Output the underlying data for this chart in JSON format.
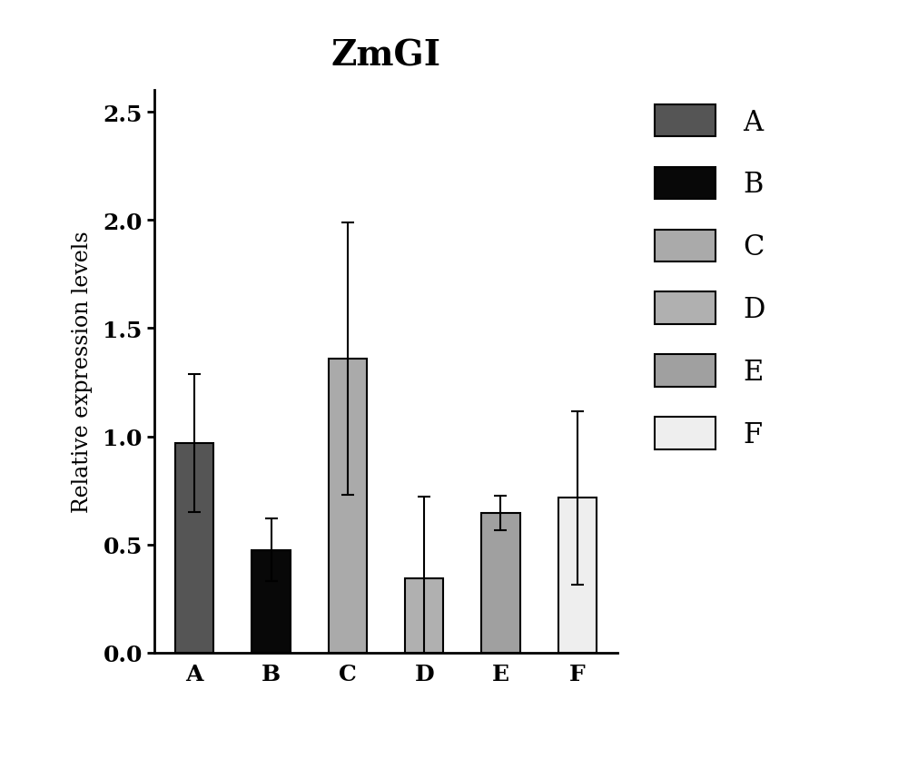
{
  "title": "ZmGI",
  "categories": [
    "A",
    "B",
    "C",
    "D",
    "E",
    "F"
  ],
  "values": [
    0.97,
    0.475,
    1.36,
    0.345,
    0.645,
    0.715
  ],
  "errors": [
    0.32,
    0.145,
    0.63,
    0.375,
    0.08,
    0.4
  ],
  "bar_colors": [
    "#555555",
    "#080808",
    "#aaaaaa",
    "#b0b0b0",
    "#a0a0a0",
    "#eeeeee"
  ],
  "bar_edgecolors": [
    "#000000",
    "#000000",
    "#000000",
    "#000000",
    "#000000",
    "#000000"
  ],
  "ylabel": "Relative expression levels",
  "ylim": [
    0,
    2.6
  ],
  "yticks": [
    0.0,
    0.5,
    1.0,
    1.5,
    2.0,
    2.5
  ],
  "title_fontsize": 28,
  "label_fontsize": 17,
  "tick_fontsize": 18,
  "legend_fontsize": 22,
  "bar_width": 0.5,
  "background_color": "#ffffff",
  "legend_labels": [
    "A",
    "B",
    "C",
    "D",
    "E",
    "F"
  ],
  "legend_colors": [
    "#555555",
    "#080808",
    "#aaaaaa",
    "#b0b0b0",
    "#a0a0a0",
    "#eeeeee"
  ]
}
